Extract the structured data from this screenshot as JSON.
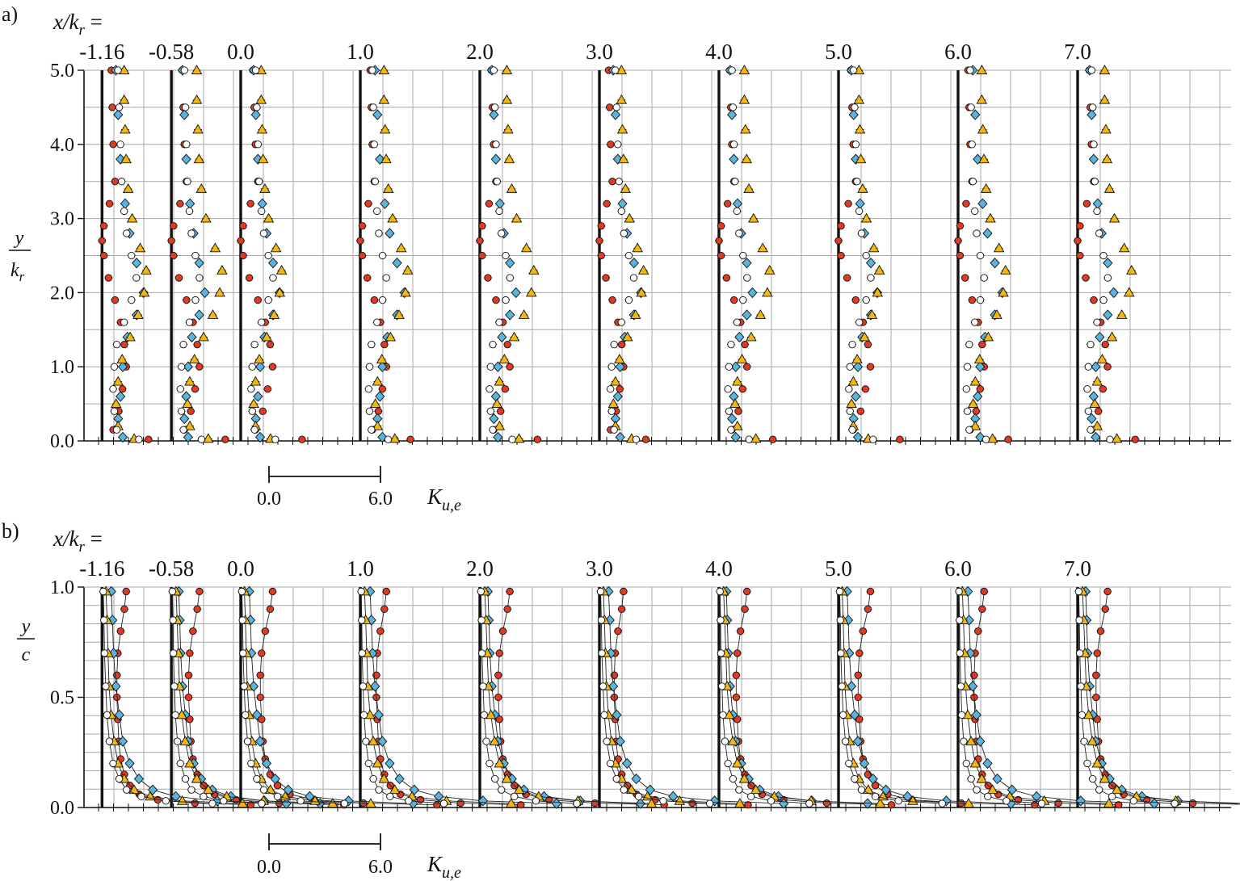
{
  "colors": {
    "red": "#e03a25",
    "blue": "#5ab4dc",
    "yellow": "#f5b70f",
    "white": "#ffffff",
    "grid": "#a8a8a8",
    "axis": "#111111"
  },
  "station_header": {
    "lhs": "x/k",
    "sub": "r",
    "eq": " ="
  },
  "scale_bar": {
    "start": "0.0",
    "end": "6.0",
    "var_main": "K",
    "var_sub": "u,e"
  },
  "chart_data": [
    {
      "panel": "a)",
      "type": "scatter",
      "ylabel_num": "y",
      "ylabel_den_main": "k",
      "ylabel_den_sub": "r",
      "ylim": [
        0,
        5
      ],
      "yticks": [
        "0.0",
        "1.0",
        "2.0",
        "3.0",
        "4.0",
        "5.0"
      ],
      "grid": true,
      "stations": [
        {
          "label": "-1.16",
          "x": -1.16
        },
        {
          "label": "-0.58",
          "x": -0.58
        },
        {
          "label": "0.0",
          "x": 0.0
        },
        {
          "label": "1.0",
          "x": 1.0
        },
        {
          "label": "2.0",
          "x": 2.0
        },
        {
          "label": "3.0",
          "x": 3.0
        },
        {
          "label": "4.0",
          "x": 4.0
        },
        {
          "label": "5.0",
          "x": 5.0
        },
        {
          "label": "6.0",
          "x": 6.0
        },
        {
          "label": "7.0",
          "x": 7.0
        }
      ],
      "series": [
        {
          "marker": "circle",
          "color": "red",
          "K": [
            [
              0.5,
              5.0
            ],
            [
              0.55,
              4.5
            ],
            [
              0.6,
              4.0
            ],
            [
              0.7,
              3.5
            ],
            [
              0.4,
              3.2
            ],
            [
              0.1,
              2.9
            ],
            [
              0.0,
              2.7
            ],
            [
              0.1,
              2.5
            ],
            [
              0.35,
              2.2
            ],
            [
              0.7,
              1.9
            ],
            [
              1.0,
              1.6
            ],
            [
              1.2,
              1.3
            ],
            [
              1.3,
              1.0
            ],
            [
              1.1,
              0.7
            ],
            [
              0.9,
              0.4
            ],
            [
              0.6,
              0.15
            ],
            [
              2.5,
              0.02
            ]
          ]
        },
        {
          "marker": "circle",
          "color": "blue",
          "K": [
            [
              0.6,
              5.0
            ],
            [
              0.7,
              4.4
            ],
            [
              0.8,
              3.8
            ],
            [
              1.0,
              3.2
            ],
            [
              1.2,
              2.8
            ],
            [
              1.5,
              2.4
            ],
            [
              1.8,
              2.0
            ],
            [
              1.5,
              1.7
            ],
            [
              1.1,
              1.4
            ],
            [
              0.9,
              1.0
            ],
            [
              0.8,
              0.6
            ],
            [
              0.7,
              0.3
            ],
            [
              0.9,
              0.05
            ]
          ]
        },
        {
          "marker": "circle",
          "color": "yellow",
          "K": [
            [
              1.1,
              5.0
            ],
            [
              1.1,
              4.6
            ],
            [
              1.15,
              4.2
            ],
            [
              1.2,
              3.8
            ],
            [
              1.3,
              3.4
            ],
            [
              1.5,
              3.0
            ],
            [
              1.9,
              2.6
            ],
            [
              2.2,
              2.3
            ],
            [
              2.1,
              2.0
            ],
            [
              1.8,
              1.7
            ],
            [
              1.4,
              1.4
            ],
            [
              1.0,
              1.1
            ],
            [
              0.8,
              0.8
            ],
            [
              0.7,
              0.5
            ],
            [
              0.8,
              0.2
            ],
            [
              1.6,
              0.03
            ]
          ]
        },
        {
          "marker": "circle",
          "color": "white",
          "K": [
            [
              0.65,
              5.0
            ],
            [
              0.7,
              4.5
            ],
            [
              0.75,
              4.0
            ],
            [
              0.8,
              3.5
            ],
            [
              0.9,
              3.1
            ],
            [
              1.0,
              2.8
            ],
            [
              1.2,
              2.5
            ],
            [
              1.4,
              2.2
            ],
            [
              1.2,
              1.9
            ],
            [
              0.9,
              1.6
            ],
            [
              0.6,
              1.3
            ],
            [
              0.5,
              1.0
            ],
            [
              0.45,
              0.7
            ],
            [
              0.5,
              0.4
            ],
            [
              0.6,
              0.15
            ],
            [
              1.5,
              0.02
            ]
          ]
        }
      ]
    },
    {
      "panel": "b)",
      "type": "scatter",
      "ylabel_num": "y",
      "ylabel_den_main": "c",
      "ylabel_den_sub": "",
      "ylim": [
        0,
        1
      ],
      "yticks": [
        "0.0",
        "0.5",
        "1.0"
      ],
      "grid": true,
      "stations": [
        {
          "label": "-1.16",
          "x": -1.16
        },
        {
          "label": "-0.58",
          "x": -0.58
        },
        {
          "label": "0.0",
          "x": 0.0
        },
        {
          "label": "1.0",
          "x": 1.0
        },
        {
          "label": "2.0",
          "x": 2.0
        },
        {
          "label": "3.0",
          "x": 3.0
        },
        {
          "label": "4.0",
          "x": 4.0
        },
        {
          "label": "5.0",
          "x": 5.0
        },
        {
          "label": "6.0",
          "x": 6.0
        },
        {
          "label": "7.0",
          "x": 7.0
        }
      ],
      "series": [
        {
          "marker": "circle",
          "color": "red",
          "K": [
            [
              1.3,
              0.98
            ],
            [
              1.2,
              0.9
            ],
            [
              1.0,
              0.8
            ],
            [
              0.85,
              0.7
            ],
            [
              0.8,
              0.6
            ],
            [
              0.8,
              0.5
            ],
            [
              0.85,
              0.4
            ],
            [
              0.9,
              0.3
            ],
            [
              1.0,
              0.22
            ],
            [
              1.2,
              0.15
            ],
            [
              1.5,
              0.1
            ],
            [
              2.0,
              0.06
            ],
            [
              3.0,
              0.035
            ],
            [
              5.0,
              0.02
            ],
            [
              8.0,
              0.012
            ]
          ]
        },
        {
          "marker": "circle",
          "color": "blue",
          "K": [
            [
              0.4,
              0.98
            ],
            [
              0.45,
              0.85
            ],
            [
              0.5,
              0.7
            ],
            [
              0.6,
              0.55
            ],
            [
              0.75,
              0.42
            ],
            [
              0.9,
              0.3
            ],
            [
              1.2,
              0.2
            ],
            [
              1.6,
              0.13
            ],
            [
              2.2,
              0.08
            ],
            [
              3.2,
              0.05
            ],
            [
              5.0,
              0.03
            ],
            [
              8.0,
              0.018
            ]
          ]
        },
        {
          "marker": "circle",
          "color": "yellow",
          "K": [
            [
              0.2,
              0.98
            ],
            [
              0.25,
              0.85
            ],
            [
              0.3,
              0.7
            ],
            [
              0.35,
              0.55
            ],
            [
              0.45,
              0.42
            ],
            [
              0.6,
              0.3
            ],
            [
              0.8,
              0.2
            ],
            [
              1.1,
              0.13
            ],
            [
              1.6,
              0.08
            ],
            [
              2.4,
              0.05
            ],
            [
              4.0,
              0.03
            ],
            [
              7.0,
              0.018
            ]
          ]
        },
        {
          "marker": "circle",
          "color": "white",
          "K": [
            [
              0.05,
              0.98
            ],
            [
              0.08,
              0.85
            ],
            [
              0.1,
              0.7
            ],
            [
              0.15,
              0.55
            ],
            [
              0.2,
              0.42
            ],
            [
              0.3,
              0.3
            ],
            [
              0.45,
              0.2
            ],
            [
              0.7,
              0.13
            ],
            [
              1.0,
              0.08
            ],
            [
              1.6,
              0.05
            ],
            [
              2.6,
              0.03
            ],
            [
              4.5,
              0.018
            ]
          ]
        }
      ]
    }
  ]
}
